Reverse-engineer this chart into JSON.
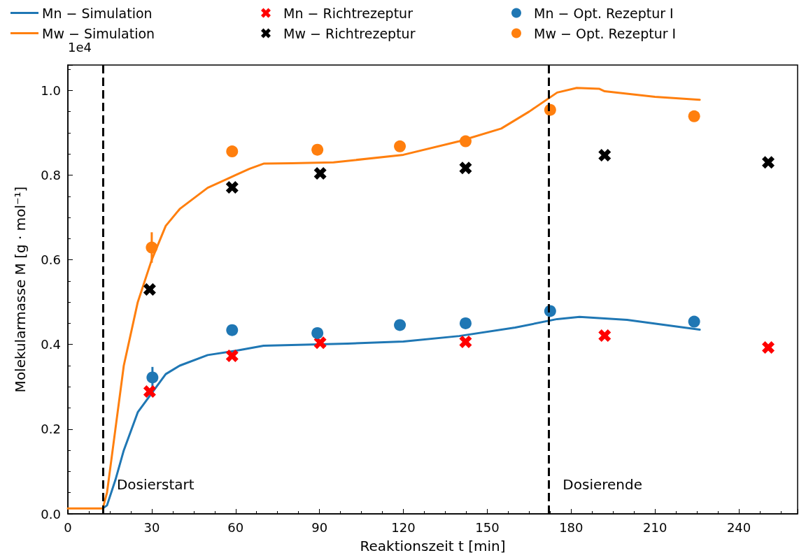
{
  "chart_data": {
    "type": "scatter",
    "xlabel": "Reaktionszeit t [min]",
    "ylabel": "Molekularmasse M [g · mol⁻¹]",
    "annotations": [
      "1e4"
    ],
    "xlim": [
      0,
      261
    ],
    "xticks": [
      0,
      30,
      60,
      90,
      120,
      150,
      180,
      210,
      240
    ],
    "ylim": [
      0,
      1.06
    ],
    "yticks": [
      {
        "value": 0,
        "label": "0.0"
      },
      0.2,
      0.4,
      0.6,
      0.8,
      {
        "value": 1,
        "label": "1.0"
      }
    ],
    "grid": false,
    "legend": "top",
    "ref_lines": [
      {
        "axis": "x",
        "value": 12.5,
        "label": "Dosierstart",
        "color": "#000000",
        "line_style": "dashed"
      },
      {
        "axis": "x",
        "value": 172,
        "label": "Dosierende",
        "color": "#000000",
        "line_style": "dashed"
      }
    ],
    "series": [
      {
        "name": "Mn − Simulation",
        "type": "line",
        "marker": "none",
        "color": "#1f77b4",
        "x": [
          12.5,
          14,
          17,
          20,
          25,
          35,
          40,
          50,
          60,
          70,
          100,
          120,
          140,
          160,
          175,
          183,
          200,
          226
        ],
        "values": [
          0.013,
          0.02,
          0.08,
          0.15,
          0.24,
          0.33,
          0.35,
          0.375,
          0.385,
          0.397,
          0.402,
          0.407,
          0.42,
          0.44,
          0.46,
          0.465,
          0.458,
          0.435
        ]
      },
      {
        "name": "Mw − Simulation",
        "type": "line",
        "marker": "none",
        "color": "#ff7f0e",
        "x": [
          0,
          12.5,
          14,
          17,
          20,
          25,
          30,
          35,
          40,
          50,
          60,
          65,
          70,
          80,
          95,
          120,
          140,
          155,
          165,
          175,
          182,
          190,
          192,
          210,
          226
        ],
        "values": [
          0.013,
          0.013,
          0.05,
          0.2,
          0.35,
          0.5,
          0.6,
          0.68,
          0.72,
          0.77,
          0.8,
          0.815,
          0.827,
          0.828,
          0.83,
          0.848,
          0.88,
          0.91,
          0.95,
          0.995,
          1.006,
          1.004,
          0.998,
          0.985,
          0.978
        ]
      },
      {
        "name": "Mn − Richtrezeptur",
        "marker": "cross",
        "color": "#ff0000",
        "x": [
          29.25,
          58.75,
          90.25,
          142.25,
          192,
          250.5
        ],
        "values": [
          0.289,
          0.373,
          0.404,
          0.406,
          0.421,
          0.393
        ]
      },
      {
        "name": "Mw − Richtrezeptur",
        "marker": "cross",
        "color": "#000000",
        "x": [
          29.25,
          58.75,
          90.25,
          142.25,
          192,
          250.5
        ],
        "values": [
          0.53,
          0.771,
          0.804,
          0.817,
          0.847,
          0.83
        ]
      },
      {
        "name": "Mn − Opt. Rezeptur I",
        "marker": "circle",
        "color": "#1f77b4",
        "x": [
          30.25,
          58.75,
          89.25,
          118.75,
          142.25,
          172.5,
          224
        ],
        "values": [
          0.322,
          0.434,
          0.427,
          0.446,
          0.45,
          0.479,
          0.454
        ],
        "errors": [
          0.025,
          null,
          null,
          null,
          null,
          null,
          null
        ]
      },
      {
        "name": "Mw − Opt. Rezeptur I",
        "marker": "circle",
        "color": "#ff7f0e",
        "x": [
          30,
          58.75,
          89.25,
          118.75,
          142.25,
          172.5,
          224
        ],
        "values": [
          0.629,
          0.856,
          0.86,
          0.868,
          0.88,
          0.954,
          0.939
        ],
        "errors": [
          0.036,
          null,
          null,
          null,
          null,
          null,
          null
        ]
      }
    ]
  }
}
